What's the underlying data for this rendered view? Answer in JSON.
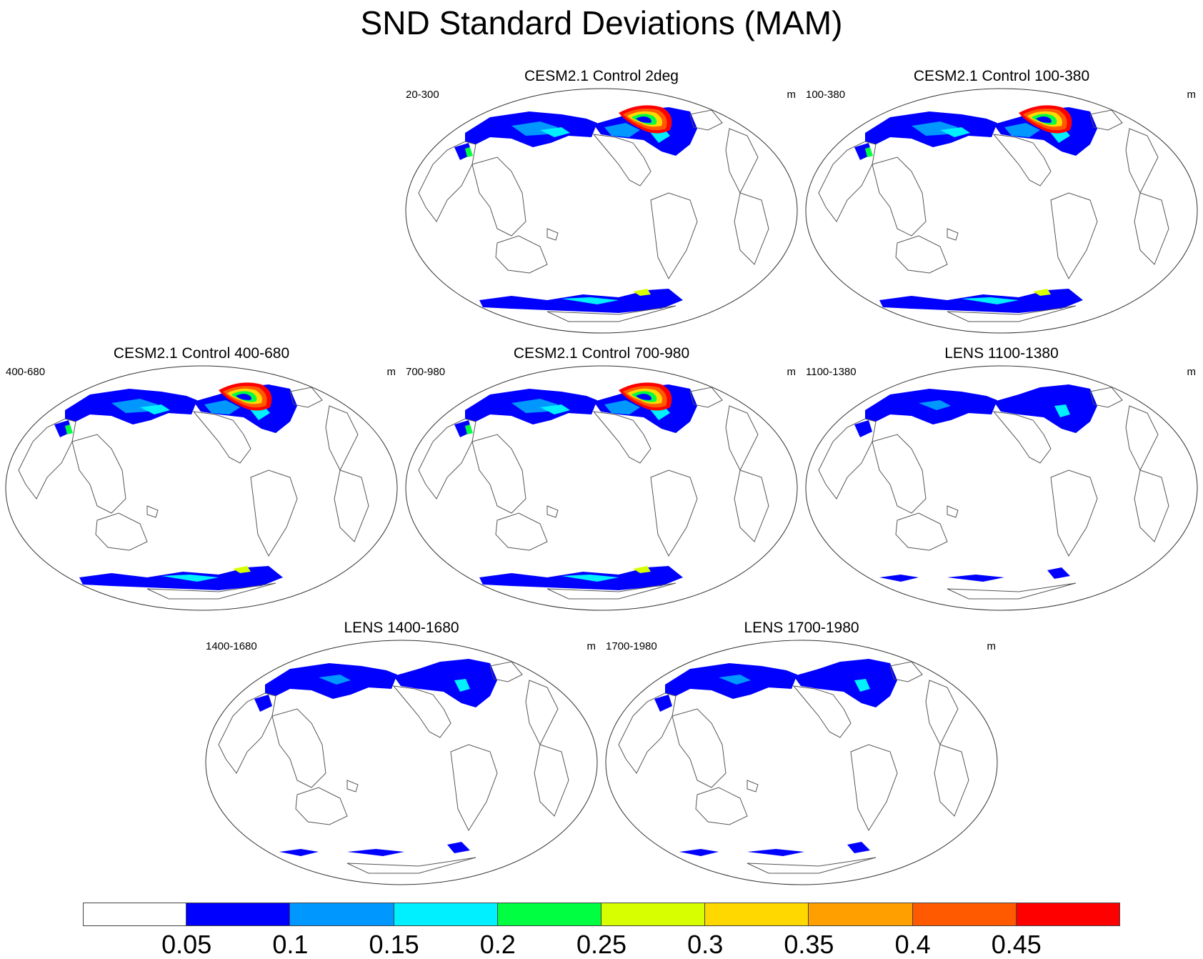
{
  "title": "SND Standard Deviations (MAM)",
  "panels": [
    {
      "title": "CESM2.1 Control 2deg",
      "years": "20-300",
      "units": "m",
      "intensity": "high"
    },
    {
      "title": "CESM2.1 Control 100-380",
      "years": "100-380",
      "units": "m",
      "intensity": "high"
    },
    {
      "title": "CESM2.1 Control 400-680",
      "years": "400-680",
      "units": "m",
      "intensity": "high"
    },
    {
      "title": "CESM2.1 Control 700-980",
      "years": "700-980",
      "units": "m",
      "intensity": "high"
    },
    {
      "title": "LENS 1100-1380",
      "years": "1100-1380",
      "units": "m",
      "intensity": "low"
    },
    {
      "title": "LENS 1400-1680",
      "years": "1400-1680",
      "units": "m",
      "intensity": "low"
    },
    {
      "title": "LENS 1700-1980",
      "years": "1700-1980",
      "units": "m",
      "intensity": "low"
    }
  ],
  "colorbar": {
    "labels": [
      "0.05",
      "0.1",
      "0.15",
      "0.2",
      "0.25",
      "0.3",
      "0.35",
      "0.4",
      "0.45"
    ],
    "colors": [
      "#ffffff",
      "#0000ff",
      "#0098ff",
      "#00f0ff",
      "#00ff40",
      "#d8ff00",
      "#ffd800",
      "#ffa000",
      "#ff5a00",
      "#ff0000"
    ]
  }
}
